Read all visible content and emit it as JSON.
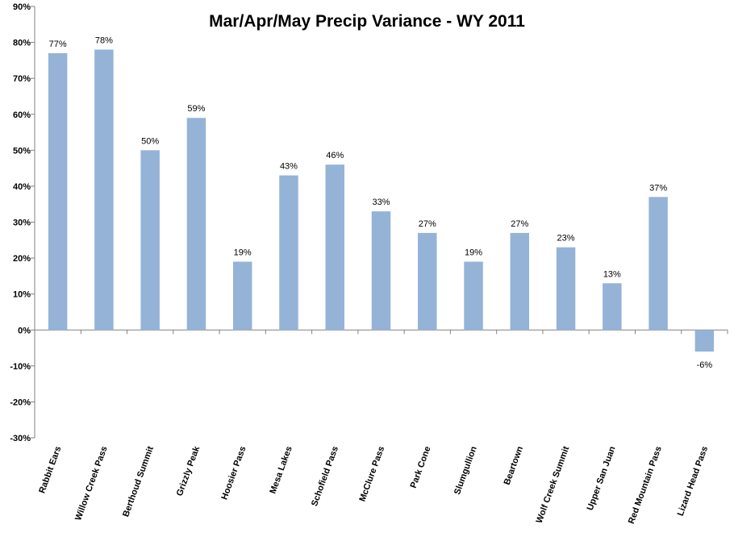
{
  "chart_data": {
    "type": "bar",
    "title": "Mar/Apr/May Precip Variance - WY 2011",
    "xlabel": "",
    "ylabel": "",
    "categories": [
      "Rabbit Ears",
      "Willow Creek Pass",
      "Berthoud Summit",
      "Grizzly Peak",
      "Hoosier Pass",
      "Mesa Lakes",
      "Schofield Pass",
      "McClure Pass",
      "Park Cone",
      "Slumgullion",
      "Beartown",
      "Wolf Creek Summit",
      "Upper San Juan",
      "Red Mountain Pass",
      "Lizard Head Pass"
    ],
    "values": [
      77,
      78,
      50,
      59,
      19,
      43,
      46,
      33,
      27,
      19,
      27,
      23,
      13,
      37,
      -6
    ],
    "data_labels": [
      "77%",
      "78%",
      "50%",
      "59%",
      "19%",
      "43%",
      "46%",
      "33%",
      "27%",
      "19%",
      "27%",
      "23%",
      "13%",
      "37%",
      "-6%"
    ],
    "ylim": [
      -30,
      90
    ],
    "yticks": [
      90,
      80,
      70,
      60,
      50,
      40,
      30,
      20,
      10,
      0,
      -10,
      -20,
      -30
    ],
    "ytick_labels": [
      "90%",
      "80%",
      "70%",
      "60%",
      "50%",
      "40%",
      "30%",
      "20%",
      "10%",
      "0%",
      "-10%",
      "-20%",
      "-30%"
    ],
    "grid": false,
    "legend": "none",
    "bar_color": "#95b3d7",
    "axis_color": "#808080"
  }
}
